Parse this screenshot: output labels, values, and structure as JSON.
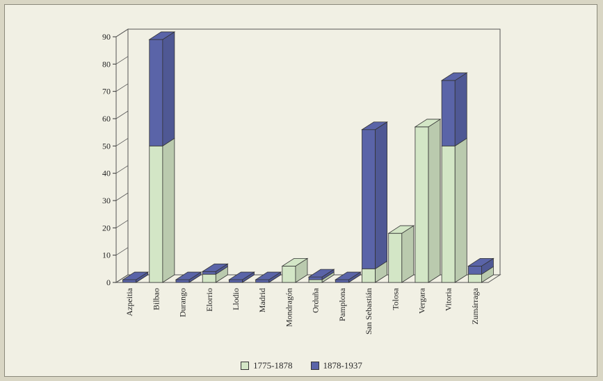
{
  "chart_data": {
    "type": "bar",
    "stacked": true,
    "three_d": true,
    "categories": [
      "Azpeitia",
      "Bilbao",
      "Durango",
      "Elorrio",
      "Llodio",
      "Madrid",
      "Mondragón",
      "Orduña",
      "Pamplona",
      "San Sebastián",
      "Tolosa",
      "Vergara",
      "Vitoria",
      "Zumárraga"
    ],
    "series": [
      {
        "name": "1775-1878",
        "values": [
          0,
          50,
          0,
          3,
          0,
          0,
          6,
          1,
          0,
          5,
          18,
          57,
          50,
          3
        ]
      },
      {
        "name": "1878-1937",
        "values": [
          1,
          39,
          1,
          1,
          1,
          1,
          0,
          1,
          1,
          51,
          0,
          0,
          24,
          3
        ]
      }
    ],
    "ylim": [
      0,
      90
    ],
    "yticks": [
      0,
      10,
      20,
      30,
      40,
      50,
      60,
      70,
      80,
      90
    ],
    "grid": false,
    "legend_position": "bottom",
    "colors": {
      "1775-1878": "#d3e6c6",
      "1878-1937": "#5a64a8"
    }
  }
}
